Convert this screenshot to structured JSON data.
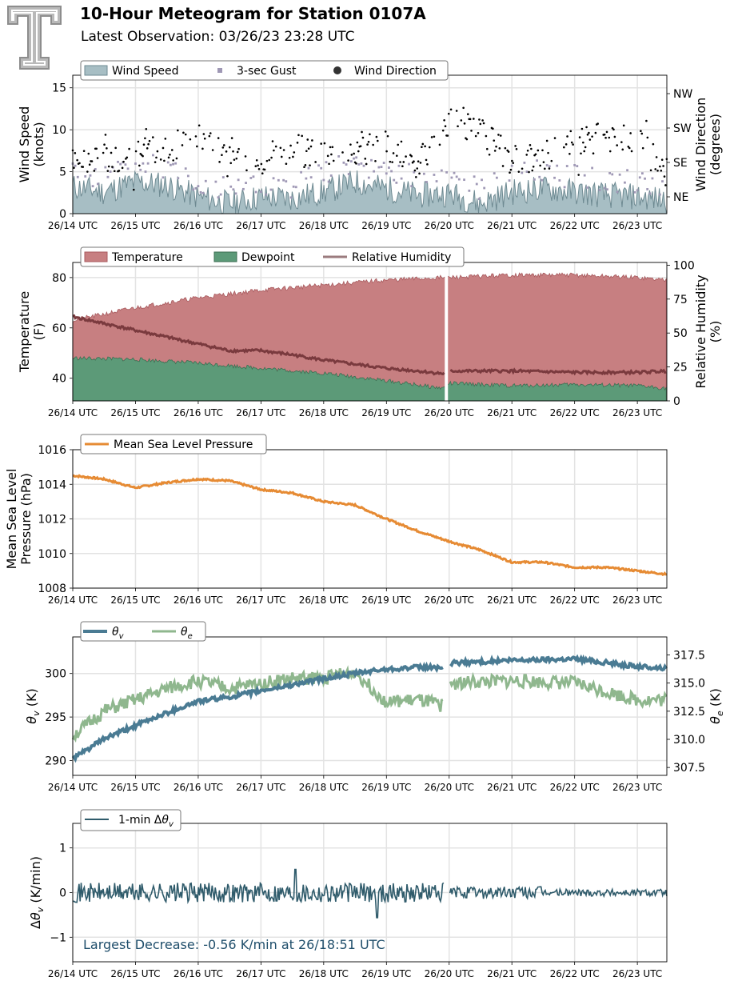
{
  "header": {
    "title": "10-Hour Meteogram for Station 0107A",
    "subtitle": "Latest Observation: 03/26/23 23:28 UTC"
  },
  "x_ticks": [
    "26/14 UTC",
    "26/15 UTC",
    "26/16 UTC",
    "26/17 UTC",
    "26/18 UTC",
    "26/19 UTC",
    "26/20 UTC",
    "26/21 UTC",
    "26/22 UTC",
    "26/23 UTC"
  ],
  "colors": {
    "wind_fill": "#a7bec4",
    "wind_line": "#6e8a92",
    "gust": "#9f98b5",
    "direction": "#000000",
    "temperature": "#c77f81",
    "temperature_line": "#a85a5e",
    "dewpoint": "#5c9a78",
    "dewpoint_line": "#3d6e52",
    "rh": "#7a3a3e",
    "pressure": "#e68b34",
    "theta_v": "#4a7b93",
    "theta_e": "#8fb78e",
    "dtheta": "#2f5b6b",
    "annotation": "#1f4e6b"
  },
  "chart_data": [
    {
      "type": "area",
      "ylabel": "Wind Speed (knots)",
      "ylim": [
        0,
        16.5
      ],
      "yticks": [
        "0",
        "5",
        "10",
        "15"
      ],
      "y2label": "Wind Direction (degrees)",
      "y2ticks": [
        "NE",
        "SE",
        "SW",
        "NW"
      ],
      "legend": [
        "Wind Speed",
        "3-sec Gust",
        "Wind Direction"
      ],
      "grid": true,
      "x_range_hours": [
        0,
        9.47
      ],
      "series": [
        {
          "name": "Wind Speed",
          "x": [
            0,
            0.5,
            1,
            1.5,
            2,
            2.5,
            3,
            3.5,
            4,
            4.5,
            5,
            5.5,
            6,
            6.5,
            7,
            7.5,
            8,
            8.5,
            9,
            9.47
          ],
          "values": [
            3.2,
            2.6,
            3.8,
            3.4,
            2.0,
            1.2,
            2.0,
            1.8,
            2.6,
            3.8,
            3.0,
            2.2,
            2.4,
            1.2,
            2.6,
            3.0,
            2.6,
            2.2,
            2.0,
            1.6
          ]
        },
        {
          "name": "3-sec Gust",
          "x": [
            0,
            0.5,
            1,
            1.5,
            2,
            2.5,
            3,
            3.5,
            4,
            4.5,
            5,
            5.5,
            6,
            6.5,
            7,
            7.5,
            8,
            8.5,
            9,
            9.47
          ],
          "values": [
            4.5,
            4.0,
            5.5,
            5.2,
            3.5,
            2.8,
            3.0,
            3.0,
            4.8,
            5.5,
            4.8,
            4.0,
            4.2,
            2.5,
            4.0,
            4.8,
            4.0,
            3.8,
            3.2,
            3.0
          ]
        },
        {
          "name": "Wind Direction",
          "x": [
            0,
            0.5,
            1,
            1.5,
            2,
            2.5,
            3,
            3.5,
            4,
            4.5,
            5,
            5.5,
            6,
            6.5,
            7,
            7.5,
            8,
            8.5,
            9,
            9.47
          ],
          "values": [
            150,
            145,
            160,
            170,
            200,
            165,
            140,
            175,
            150,
            160,
            180,
            130,
            250,
            215,
            140,
            150,
            190,
            200,
            195,
            105
          ]
        }
      ]
    },
    {
      "type": "area",
      "ylabel": "Temperature (F)",
      "ylim": [
        31,
        86
      ],
      "yticks": [
        "40",
        "60",
        "80"
      ],
      "y2label": "Relative Humidity (%)",
      "y2lim": [
        0,
        102
      ],
      "y2ticks": [
        "0",
        "25",
        "50",
        "75",
        "100"
      ],
      "legend": [
        "Temperature",
        "Dewpoint",
        "Relative Humidity"
      ],
      "grid": true,
      "gap_hours": [
        5.93,
        5.99
      ],
      "series": [
        {
          "name": "Temperature",
          "x": [
            0,
            1,
            2,
            3,
            4,
            5,
            5.9,
            6,
            7,
            8,
            9,
            9.47
          ],
          "values": [
            63,
            68,
            72,
            75,
            77,
            79,
            80,
            80,
            81,
            81,
            80,
            79
          ]
        },
        {
          "name": "Dewpoint",
          "x": [
            0,
            1,
            2,
            3,
            4,
            5,
            5.9,
            6,
            7,
            8,
            9,
            9.47
          ],
          "values": [
            48,
            47.5,
            46,
            44,
            42,
            39,
            36,
            38,
            37,
            37.5,
            37,
            36
          ]
        },
        {
          "name": "Relative Humidity",
          "x": [
            0,
            0.5,
            1,
            1.5,
            2,
            2.5,
            3,
            3.5,
            4,
            4.5,
            5,
            5.5,
            5.9,
            6,
            7,
            8,
            9,
            9.47
          ],
          "values": [
            62,
            57,
            52,
            47,
            42,
            37,
            37,
            34,
            30,
            27,
            24,
            22,
            20,
            22,
            22,
            21,
            21,
            22
          ]
        }
      ]
    },
    {
      "type": "line",
      "ylabel": "Mean Sea Level Pressure (hPa)",
      "ylim": [
        1008,
        1016
      ],
      "yticks": [
        "1008",
        "1010",
        "1012",
        "1014",
        "1016"
      ],
      "legend": [
        "Mean Sea Level Pressure"
      ],
      "grid": true,
      "series": [
        {
          "name": "Mean Sea Level Pressure",
          "x": [
            0,
            0.5,
            1,
            1.5,
            2,
            2.5,
            3,
            3.5,
            4,
            4.5,
            5,
            5.5,
            6,
            6.5,
            7,
            7.5,
            8,
            8.5,
            9,
            9.47
          ],
          "values": [
            1014.5,
            1014.3,
            1013.8,
            1014.1,
            1014.3,
            1014.2,
            1013.7,
            1013.5,
            1013.0,
            1012.8,
            1012.0,
            1011.3,
            1010.7,
            1010.2,
            1009.5,
            1009.5,
            1009.2,
            1009.2,
            1009.0,
            1008.8
          ]
        }
      ]
    },
    {
      "type": "line",
      "ylabel": "θv (K)",
      "ylim": [
        288.3,
        304.2
      ],
      "yticks": [
        "290",
        "295",
        "300"
      ],
      "y2label": "θe (K)",
      "y2lim": [
        306.8,
        319.1
      ],
      "y2ticks": [
        "307.5",
        "310.0",
        "312.5",
        "315.0",
        "317.5"
      ],
      "legend": [
        "θv",
        "θe"
      ],
      "grid": true,
      "series": [
        {
          "name": "θv",
          "x": [
            0,
            0.5,
            1,
            1.5,
            2,
            2.5,
            3,
            3.5,
            4,
            4.5,
            5,
            5.5,
            5.9,
            6,
            7,
            8,
            9,
            9.47
          ],
          "values": [
            290.2,
            292.5,
            294.0,
            295.5,
            296.8,
            297.3,
            298.0,
            298.7,
            299.4,
            300.0,
            300.5,
            300.7,
            300.7,
            301.2,
            301.5,
            301.7,
            300.8,
            300.6
          ]
        },
        {
          "name": "θe",
          "x": [
            0,
            0.5,
            1,
            1.5,
            2,
            2.5,
            3,
            3.5,
            4,
            4.5,
            5,
            5.5,
            5.9,
            6,
            7,
            8,
            9,
            9.47
          ],
          "values": [
            310.3,
            312.5,
            313.5,
            314.5,
            315.2,
            314.5,
            315.0,
            315.4,
            315.5,
            316.0,
            313.3,
            313.5,
            313.0,
            315.0,
            315.2,
            315.0,
            313.5,
            313.5
          ]
        }
      ]
    },
    {
      "type": "line",
      "ylabel": "Δθv (K/min)",
      "ylim": [
        -1.55,
        1.55
      ],
      "yticks": [
        "−1",
        "0",
        "1"
      ],
      "legend": [
        "1-min Δθv"
      ],
      "grid": true,
      "annotation": "Largest Decrease: -0.56 K/min at 26/18:51 UTC",
      "series": [
        {
          "name": "1-min Δθv",
          "x": [
            0,
            1,
            2,
            3,
            4,
            4.85,
            5.5,
            6,
            7,
            8,
            9,
            9.47
          ],
          "values": [
            0.05,
            0.1,
            0.0,
            0.05,
            0.1,
            -0.56,
            0.1,
            0.05,
            0.0,
            0.05,
            0.0,
            -0.05
          ]
        }
      ]
    }
  ]
}
